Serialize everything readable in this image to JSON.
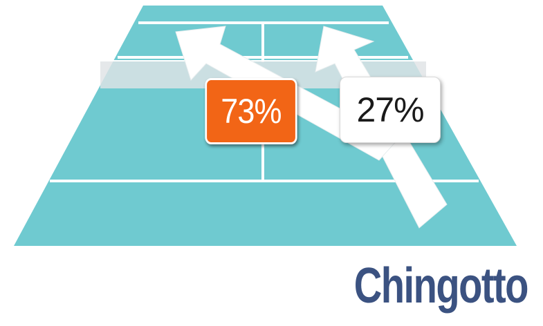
{
  "diagram": {
    "court_color": "#6fcad0",
    "line_color": "#ffffff",
    "arrow_color": "#ffffff",
    "net_color": "#d9dee0"
  },
  "percentages": {
    "left": {
      "label": "73%",
      "value": 73,
      "background": "#f26516",
      "text_color": "#ffffff"
    },
    "right": {
      "label": "27%",
      "value": 27,
      "background": "#ffffff",
      "text_color": "#1a1a1a"
    }
  },
  "player": {
    "name": "Chingotto",
    "color": "#3b5281"
  }
}
